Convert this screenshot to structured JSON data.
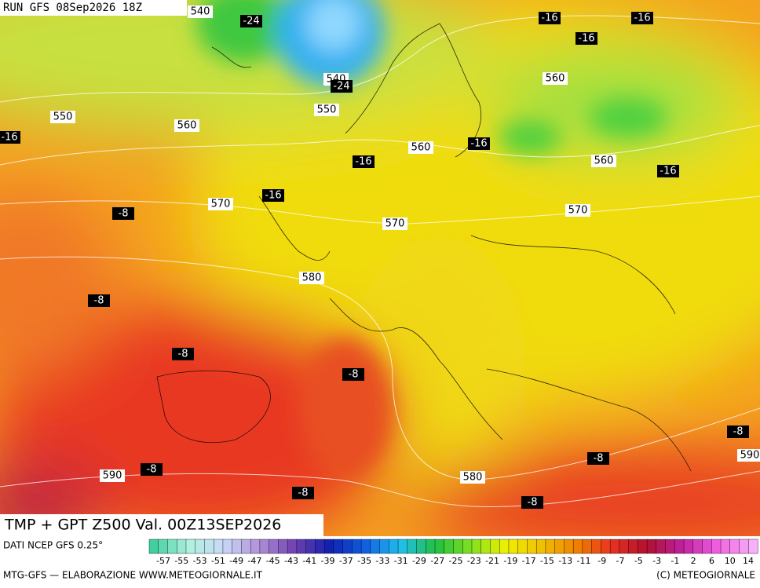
{
  "header": {
    "run": "RUN GFS 08Sep2026 18Z"
  },
  "map": {
    "isolines": [
      540,
      540,
      550,
      550,
      560,
      560,
      560,
      560,
      570,
      570,
      570,
      580,
      580,
      590,
      590
    ],
    "temperatures": [
      -24,
      -24,
      -16,
      -16,
      -16,
      -16,
      -16,
      -16,
      -16,
      -16,
      -8,
      -8,
      -8,
      -8,
      -8,
      -8,
      -8,
      -8,
      -8
    ]
  },
  "footer": {
    "title": "TMP + GPT Z500 Val. 00Z13SEP2026",
    "source": "DATI NCEP GFS 0.25°",
    "scale": [
      -57,
      -55,
      -53,
      -51,
      -49,
      -47,
      -45,
      -43,
      -41,
      -39,
      -37,
      -35,
      -33,
      -31,
      -29,
      -27,
      -25,
      -23,
      -21,
      -19,
      -17,
      -15,
      -13,
      -11,
      -9,
      -7,
      -5,
      -3,
      -1,
      2,
      6,
      10,
      14
    ],
    "credit": "MTG-GFS — ELABORAZIONE WWW.METEOGIORNALE.IT",
    "copyright": "(C) METEOGIORNALE"
  }
}
